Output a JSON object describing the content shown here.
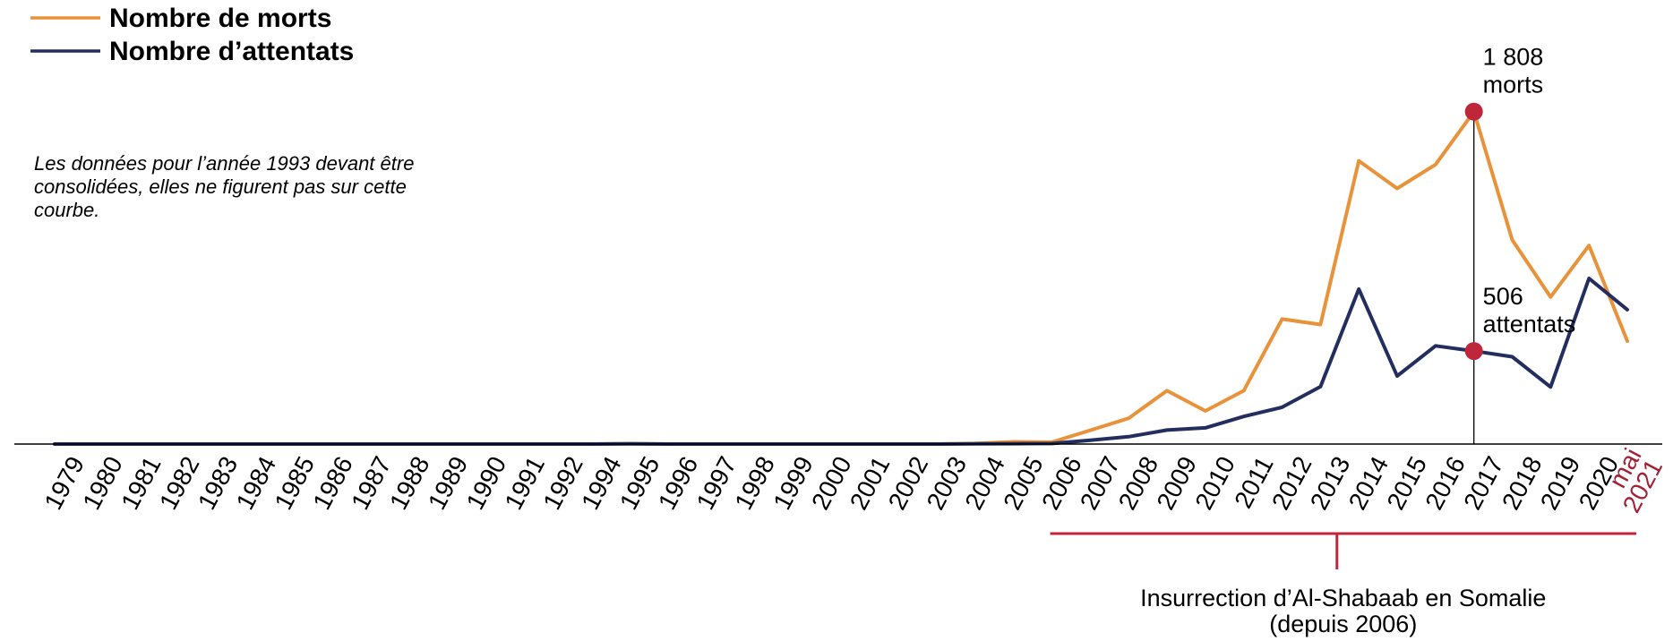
{
  "chart_data": {
    "type": "line",
    "categories": [
      "1979",
      "1980",
      "1981",
      "1982",
      "1983",
      "1984",
      "1985",
      "1986",
      "1987",
      "1988",
      "1989",
      "1990",
      "1991",
      "1992",
      "1994",
      "1995",
      "1996",
      "1997",
      "1998",
      "1999",
      "2000",
      "2001",
      "2002",
      "2003",
      "2004",
      "2005",
      "2006",
      "2007",
      "2008",
      "2009",
      "2010",
      "2011",
      "2012",
      "2013",
      "2014",
      "2015",
      "2016",
      "2017",
      "2018",
      "2019",
      "2020",
      "mai 2021"
    ],
    "tick_labels": [
      [
        "1979"
      ],
      [
        "1980"
      ],
      [
        "1981"
      ],
      [
        "1982"
      ],
      [
        "1983"
      ],
      [
        "1984"
      ],
      [
        "1985"
      ],
      [
        "1986"
      ],
      [
        "1987"
      ],
      [
        "1988"
      ],
      [
        "1989"
      ],
      [
        "1990"
      ],
      [
        "1991"
      ],
      [
        "1992"
      ],
      [
        "1994"
      ],
      [
        "1995"
      ],
      [
        "1996"
      ],
      [
        "1997"
      ],
      [
        "1998"
      ],
      [
        "1999"
      ],
      [
        "2000"
      ],
      [
        "2001"
      ],
      [
        "2002"
      ],
      [
        "2003"
      ],
      [
        "2004"
      ],
      [
        "2005"
      ],
      [
        "2006"
      ],
      [
        "2007"
      ],
      [
        "2008"
      ],
      [
        "2009"
      ],
      [
        "2010"
      ],
      [
        "2011"
      ],
      [
        "2012"
      ],
      [
        "2013"
      ],
      [
        "2014"
      ],
      [
        "2015"
      ],
      [
        "2016"
      ],
      [
        "2017"
      ],
      [
        "2018"
      ],
      [
        "2019"
      ],
      [
        "2020"
      ],
      [
        "mai",
        "2021"
      ]
    ],
    "series": [
      {
        "name": "Nombre de morts",
        "color": "#E8923A",
        "values": [
          0,
          0,
          0,
          0,
          0,
          0,
          0,
          0,
          0,
          0,
          0,
          0,
          0,
          0,
          0,
          2,
          0,
          0,
          0,
          0,
          0,
          0,
          0,
          0,
          3,
          12,
          10,
          75,
          140,
          290,
          180,
          290,
          680,
          650,
          1540,
          1390,
          1520,
          1808,
          1110,
          800,
          1080,
          560
        ]
      },
      {
        "name": "Nombre d’attentats",
        "color": "#232E5E",
        "values": [
          0,
          0,
          0,
          0,
          0,
          0,
          0,
          0,
          0,
          0,
          0,
          0,
          0,
          0,
          0,
          1,
          0,
          0,
          0,
          0,
          0,
          0,
          0,
          0,
          1,
          2,
          3,
          21,
          40,
          76,
          88,
          150,
          200,
          312,
          843,
          370,
          534,
          506,
          475,
          310,
          901,
          731
        ]
      }
    ],
    "ylim": [
      0,
      2050
    ],
    "title": "",
    "xlabel": "",
    "ylabel": "",
    "legend": {
      "position": "top-left",
      "entries": [
        "Nombre de morts",
        "Nombre d’attentats"
      ]
    },
    "annotations": [
      {
        "category": "2017",
        "series": "Nombre de morts",
        "value": 1808,
        "lines": [
          "1 808",
          "morts"
        ]
      },
      {
        "category": "2017",
        "series": "Nombre d’attentats",
        "value": 506,
        "lines": [
          "506",
          "attentats"
        ]
      }
    ],
    "note": [
      "Les données pour l’année 1993 devant être",
      "consolidées, elles ne figurent pas sur cette",
      "courbe."
    ],
    "period": {
      "start": "2006",
      "end": "mai 2021",
      "lines": [
        "Insurrection d’Al-Shabaab en Somalie",
        "(depuis 2006)"
      ]
    },
    "colors": {
      "axis": "#000000",
      "marker": "#C0263A",
      "period": "#C0263A",
      "guide": "#000000",
      "highlight_tick": "#A32036"
    }
  }
}
